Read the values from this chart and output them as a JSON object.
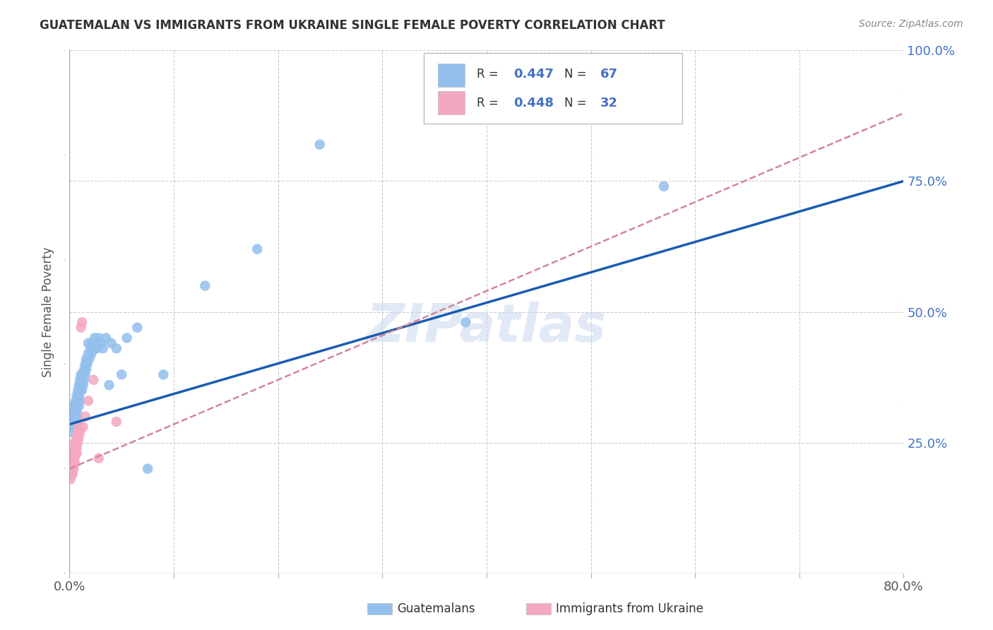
{
  "title": "GUATEMALAN VS IMMIGRANTS FROM UKRAINE SINGLE FEMALE POVERTY CORRELATION CHART",
  "source": "Source: ZipAtlas.com",
  "ylabel": "Single Female Poverty",
  "xlim": [
    0.0,
    0.8
  ],
  "ylim": [
    0.0,
    1.0
  ],
  "ytick_positions": [
    0.0,
    0.25,
    0.5,
    0.75,
    1.0
  ],
  "yticklabels": [
    "",
    "25.0%",
    "50.0%",
    "75.0%",
    "100.0%"
  ],
  "r_guatemalan": 0.447,
  "n_guatemalan": 67,
  "r_ukraine": 0.448,
  "n_ukraine": 32,
  "guatemalan_color": "#92BFED",
  "ukraine_color": "#F4A8C0",
  "guatemalan_line_color": "#1A5CB0",
  "ukraine_line_color": "#D4849A",
  "watermark": "ZIPatlas",
  "background_color": "#ffffff",
  "grid_color": "#cccccc",
  "guatemalan_x": [
    0.001,
    0.002,
    0.002,
    0.003,
    0.003,
    0.003,
    0.004,
    0.004,
    0.004,
    0.005,
    0.005,
    0.005,
    0.006,
    0.006,
    0.006,
    0.007,
    0.007,
    0.007,
    0.008,
    0.008,
    0.008,
    0.009,
    0.009,
    0.009,
    0.01,
    0.01,
    0.01,
    0.011,
    0.011,
    0.012,
    0.012,
    0.013,
    0.013,
    0.014,
    0.014,
    0.015,
    0.015,
    0.016,
    0.016,
    0.017,
    0.018,
    0.018,
    0.019,
    0.02,
    0.021,
    0.022,
    0.023,
    0.024,
    0.025,
    0.026,
    0.028,
    0.03,
    0.032,
    0.035,
    0.038,
    0.04,
    0.045,
    0.05,
    0.055,
    0.065,
    0.075,
    0.09,
    0.13,
    0.18,
    0.24,
    0.38,
    0.57
  ],
  "guatemalan_y": [
    0.27,
    0.29,
    0.31,
    0.28,
    0.3,
    0.32,
    0.29,
    0.31,
    0.28,
    0.3,
    0.32,
    0.28,
    0.31,
    0.33,
    0.3,
    0.32,
    0.34,
    0.31,
    0.33,
    0.35,
    0.3,
    0.34,
    0.36,
    0.32,
    0.35,
    0.37,
    0.33,
    0.36,
    0.38,
    0.35,
    0.37,
    0.36,
    0.38,
    0.37,
    0.39,
    0.38,
    0.4,
    0.39,
    0.41,
    0.4,
    0.42,
    0.44,
    0.41,
    0.43,
    0.42,
    0.44,
    0.43,
    0.45,
    0.44,
    0.43,
    0.45,
    0.44,
    0.43,
    0.45,
    0.36,
    0.44,
    0.43,
    0.38,
    0.45,
    0.47,
    0.2,
    0.38,
    0.55,
    0.62,
    0.82,
    0.48,
    0.74
  ],
  "ukraine_x": [
    0.001,
    0.001,
    0.002,
    0.002,
    0.002,
    0.003,
    0.003,
    0.003,
    0.004,
    0.004,
    0.004,
    0.005,
    0.005,
    0.005,
    0.006,
    0.006,
    0.007,
    0.007,
    0.007,
    0.008,
    0.008,
    0.009,
    0.009,
    0.01,
    0.011,
    0.012,
    0.013,
    0.015,
    0.018,
    0.023,
    0.028,
    0.045
  ],
  "ukraine_y": [
    0.18,
    0.21,
    0.19,
    0.23,
    0.2,
    0.22,
    0.24,
    0.19,
    0.21,
    0.23,
    0.2,
    0.22,
    0.25,
    0.21,
    0.23,
    0.25,
    0.24,
    0.26,
    0.23,
    0.25,
    0.27,
    0.26,
    0.28,
    0.27,
    0.47,
    0.48,
    0.28,
    0.3,
    0.33,
    0.37,
    0.22,
    0.29
  ]
}
